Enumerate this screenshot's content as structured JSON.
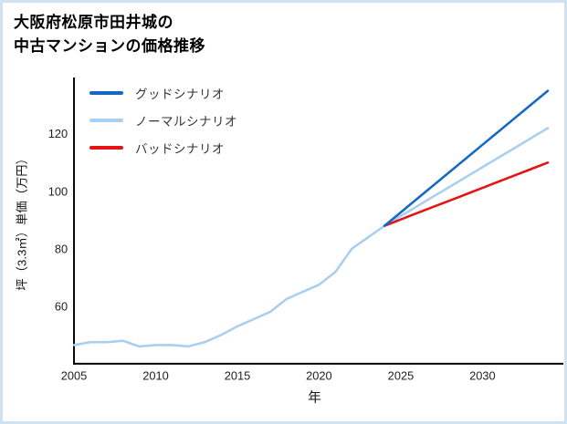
{
  "title": {
    "line1": "大阪府松原市田井城の",
    "line2": "中古マンションの価格推移"
  },
  "border_color": "#cfe2f3",
  "chart_data": {
    "type": "line",
    "title": "大阪府松原市田井城の中古マンションの価格推移",
    "xlabel": "年",
    "ylabel": "坪（3.3㎡）単価（万円）",
    "xlim": [
      2005,
      2034.4
    ],
    "ylim": [
      40,
      139
    ],
    "xticks": [
      2005,
      2010,
      2015,
      2020,
      2025,
      2030
    ],
    "yticks": [
      60,
      80,
      100,
      120
    ],
    "grid": false,
    "legend_position": "top-left",
    "axis_color": "#000000",
    "series": [
      {
        "name": "グッドシナリオ",
        "color": "#1569c4",
        "x": [
          2024,
          2025,
          2026,
          2027,
          2028,
          2029,
          2030,
          2031,
          2032,
          2033,
          2034
        ],
        "y": [
          88,
          92.7,
          97.4,
          102.1,
          106.8,
          111.5,
          116.2,
          120.9,
          125.6,
          130.3,
          135
        ]
      },
      {
        "name": "ノーマルシナリオ",
        "color": "#a8cff2",
        "x": [
          2005,
          2006,
          2007,
          2008,
          2009,
          2010,
          2011,
          2012,
          2013,
          2014,
          2015,
          2016,
          2017,
          2018,
          2019,
          2020,
          2021,
          2022,
          2023,
          2024,
          2025,
          2026,
          2027,
          2028,
          2029,
          2030,
          2031,
          2032,
          2033,
          2034
        ],
        "y": [
          46.5,
          47.5,
          47.5,
          48,
          46,
          46.5,
          46.5,
          46,
          47.5,
          50,
          53,
          55.5,
          58,
          62.5,
          65,
          67.5,
          72,
          80,
          84,
          88,
          91.4,
          94.8,
          98.2,
          101.6,
          105,
          108.4,
          111.8,
          115.2,
          118.6,
          122
        ]
      },
      {
        "name": "バッドシナリオ",
        "color": "#e51414",
        "x": [
          2024,
          2025,
          2026,
          2027,
          2028,
          2029,
          2030,
          2031,
          2032,
          2033,
          2034
        ],
        "y": [
          88,
          90.2,
          92.4,
          94.6,
          96.8,
          99,
          101.2,
          103.4,
          105.6,
          107.8,
          110
        ]
      }
    ]
  }
}
